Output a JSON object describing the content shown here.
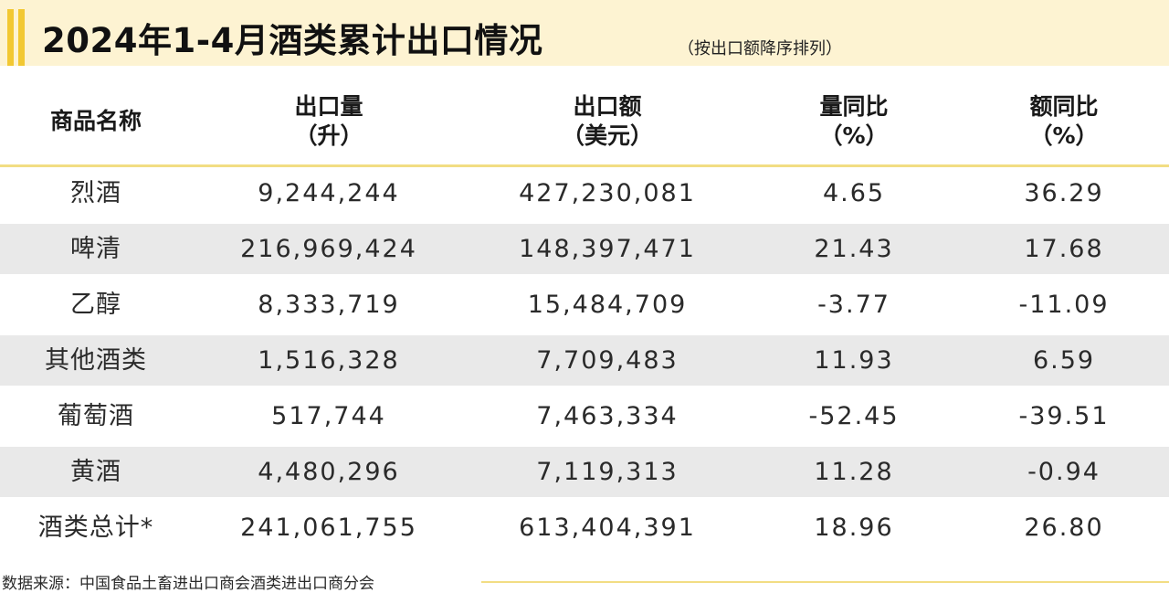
{
  "title": {
    "main": "2024年1-4月酒类累计出口情况",
    "sub": "（按出口额降序排列）"
  },
  "headers": [
    {
      "line1": "商品名称",
      "line2": ""
    },
    {
      "line1": "出口量",
      "line2": "（升）"
    },
    {
      "line1": "出口额",
      "line2": "（美元）"
    },
    {
      "line1": "量同比",
      "line2": "（%）"
    },
    {
      "line1": "额同比",
      "line2": "（%）"
    }
  ],
  "rows": [
    {
      "name": "烈酒",
      "volume": "9,244,244",
      "amount": "427,230,081",
      "volume_yoy": "4.65",
      "amount_yoy": "36.29"
    },
    {
      "name": "啤清",
      "volume": "216,969,424",
      "amount": "148,397,471",
      "volume_yoy": "21.43",
      "amount_yoy": "17.68"
    },
    {
      "name": "乙醇",
      "volume": "8,333,719",
      "amount": "15,484,709",
      "volume_yoy": "-3.77",
      "amount_yoy": "-11.09"
    },
    {
      "name": "其他酒类",
      "volume": "1,516,328",
      "amount": "7,709,483",
      "volume_yoy": "11.93",
      "amount_yoy": "6.59"
    },
    {
      "name": "葡萄酒",
      "volume": "517,744",
      "amount": "7,463,334",
      "volume_yoy": "-52.45",
      "amount_yoy": "-39.51"
    },
    {
      "name": "黄酒",
      "volume": "4,480,296",
      "amount": "7,119,313",
      "volume_yoy": "11.28",
      "amount_yoy": "-0.94"
    },
    {
      "name": "酒类总计*",
      "volume": "241,061,755",
      "amount": "613,404,391",
      "volume_yoy": "18.96",
      "amount_yoy": "26.80"
    }
  ],
  "source": "数据来源：中国食品土畜进出口商会酒类进出口商分会",
  "colors": {
    "title_background": "#fdf3d2",
    "title_accent": "#f2c832",
    "rule_line": "#f2dd83",
    "shaded_row": "#e9e9e9"
  }
}
